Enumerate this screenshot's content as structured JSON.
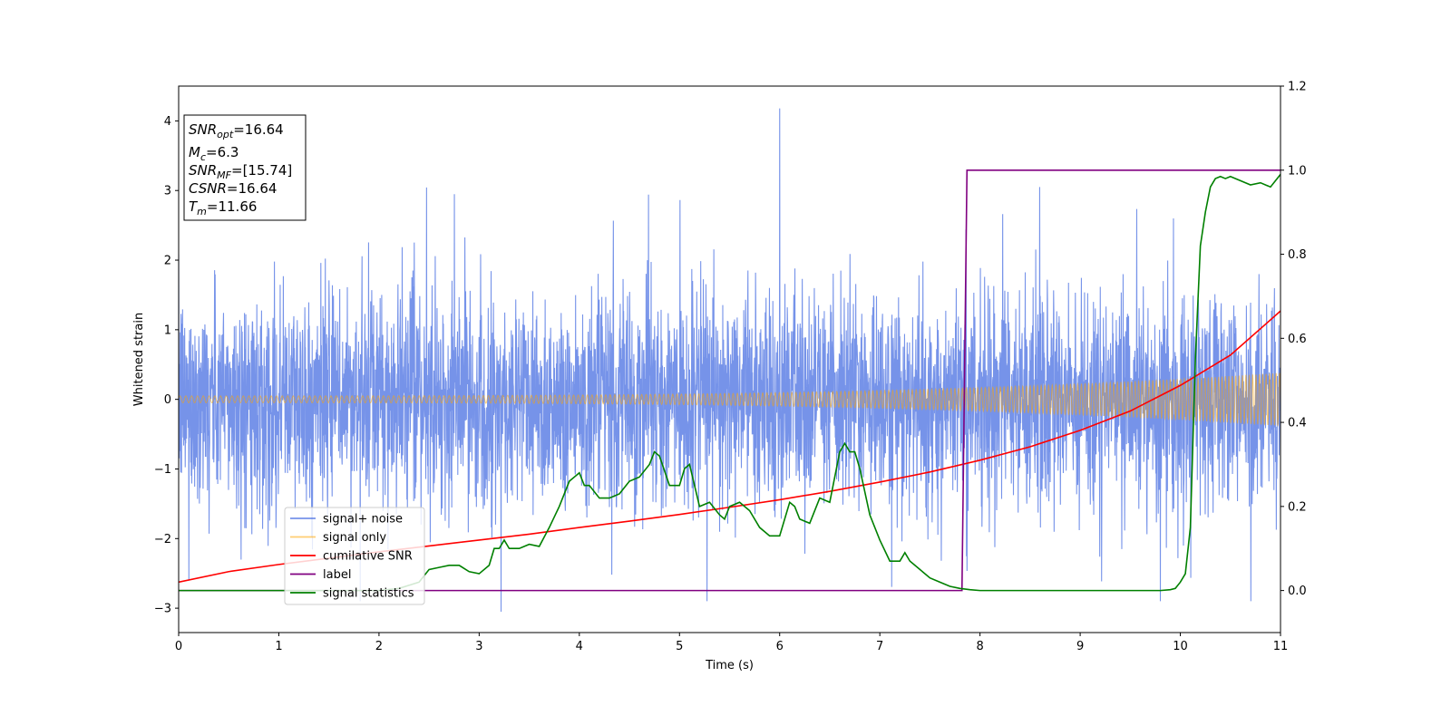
{
  "chart_data": {
    "type": "line",
    "title": "",
    "xlabel": "Time (s)",
    "ylabel": "Whitened strain",
    "xlim": [
      0,
      11
    ],
    "ylim": [
      -3.35,
      4.5
    ],
    "ylim_right": [
      -0.1,
      1.2
    ],
    "x_ticks": [
      0,
      1,
      2,
      3,
      4,
      5,
      6,
      7,
      8,
      9,
      10,
      11
    ],
    "y_ticks": [
      -3,
      -2,
      -1,
      0,
      1,
      2,
      3,
      4
    ],
    "y_ticks_right": [
      0.0,
      0.2,
      0.4,
      0.6,
      0.8,
      1.0,
      1.2
    ],
    "grid": false,
    "legend_position": "lower-left",
    "annotation": {
      "lines": [
        {
          "base": "SNR",
          "sub": "opt",
          "value": "=16.64"
        },
        {
          "base": "M",
          "sub": "c",
          "value": "=6.3"
        },
        {
          "base": "SNR",
          "sub": "MF",
          "value": "=[15.74]"
        },
        {
          "base": "CSNR",
          "sub": "",
          "value": "=16.64"
        },
        {
          "base": "T",
          "sub": "m",
          "value": "=11.66"
        }
      ]
    },
    "series": [
      {
        "name": "signal+ noise",
        "color": "#4169e1",
        "axis": "left",
        "kind": "noise",
        "std": 0.75,
        "peak": [
          6.0,
          4.18
        ],
        "trough": [
          3.22,
          -3.05
        ]
      },
      {
        "name": "signal only",
        "color": "#ffa500",
        "axis": "left",
        "kind": "chirp",
        "amp_start": 0.05,
        "amp_end": 0.38
      },
      {
        "name": "cumilative SNR",
        "color": "#ff0000",
        "axis": "right",
        "x": [
          0,
          0.5,
          1,
          1.5,
          2,
          2.5,
          3,
          3.5,
          4,
          4.5,
          5,
          5.5,
          6,
          6.5,
          7,
          7.5,
          8,
          8.5,
          9,
          9.5,
          10,
          10.5,
          11
        ],
        "y": [
          0.02,
          0.045,
          0.062,
          0.077,
          0.092,
          0.106,
          0.12,
          0.134,
          0.15,
          0.165,
          0.181,
          0.198,
          0.216,
          0.236,
          0.258,
          0.282,
          0.31,
          0.342,
          0.381,
          0.427,
          0.488,
          0.56,
          0.665
        ]
      },
      {
        "name": "label",
        "color": "#800080",
        "axis": "right",
        "x": [
          0,
          7.82,
          7.87,
          11
        ],
        "y": [
          0,
          0,
          1,
          1
        ]
      },
      {
        "name": "signal statistics",
        "color": "#008000",
        "axis": "right",
        "x": [
          0,
          0.5,
          1,
          1.5,
          2,
          2.2,
          2.4,
          2.5,
          2.6,
          2.7,
          2.8,
          2.9,
          3.0,
          3.1,
          3.15,
          3.2,
          3.25,
          3.3,
          3.35,
          3.4,
          3.5,
          3.6,
          3.7,
          3.8,
          3.9,
          4.0,
          4.05,
          4.1,
          4.2,
          4.3,
          4.4,
          4.5,
          4.6,
          4.7,
          4.75,
          4.8,
          4.9,
          5.0,
          5.05,
          5.1,
          5.2,
          5.3,
          5.4,
          5.45,
          5.5,
          5.6,
          5.7,
          5.8,
          5.9,
          6.0,
          6.1,
          6.15,
          6.2,
          6.3,
          6.4,
          6.5,
          6.6,
          6.65,
          6.7,
          6.75,
          6.8,
          6.9,
          7.0,
          7.1,
          7.2,
          7.25,
          7.3,
          7.4,
          7.5,
          7.6,
          7.7,
          7.8,
          7.9,
          8.0,
          8.5,
          9.0,
          9.5,
          9.8,
          9.9,
          9.95,
          10.0,
          10.05,
          10.1,
          10.15,
          10.2,
          10.25,
          10.3,
          10.35,
          10.4,
          10.45,
          10.5,
          10.6,
          10.7,
          10.8,
          10.9,
          11.0
        ],
        "y": [
          0,
          0,
          0,
          0,
          0,
          0.005,
          0.02,
          0.05,
          0.055,
          0.06,
          0.06,
          0.045,
          0.04,
          0.06,
          0.1,
          0.1,
          0.12,
          0.1,
          0.1,
          0.1,
          0.11,
          0.105,
          0.15,
          0.2,
          0.26,
          0.28,
          0.25,
          0.25,
          0.22,
          0.22,
          0.23,
          0.26,
          0.27,
          0.3,
          0.33,
          0.32,
          0.25,
          0.25,
          0.29,
          0.3,
          0.2,
          0.21,
          0.18,
          0.17,
          0.2,
          0.21,
          0.19,
          0.15,
          0.13,
          0.13,
          0.21,
          0.2,
          0.17,
          0.16,
          0.22,
          0.21,
          0.33,
          0.35,
          0.33,
          0.33,
          0.29,
          0.18,
          0.12,
          0.07,
          0.07,
          0.09,
          0.07,
          0.05,
          0.03,
          0.02,
          0.01,
          0.005,
          0.002,
          0.0,
          0.0,
          0.0,
          0.0,
          0.0,
          0.002,
          0.005,
          0.02,
          0.04,
          0.15,
          0.55,
          0.82,
          0.9,
          0.96,
          0.98,
          0.985,
          0.98,
          0.985,
          0.975,
          0.965,
          0.97,
          0.96,
          0.99
        ]
      }
    ]
  }
}
